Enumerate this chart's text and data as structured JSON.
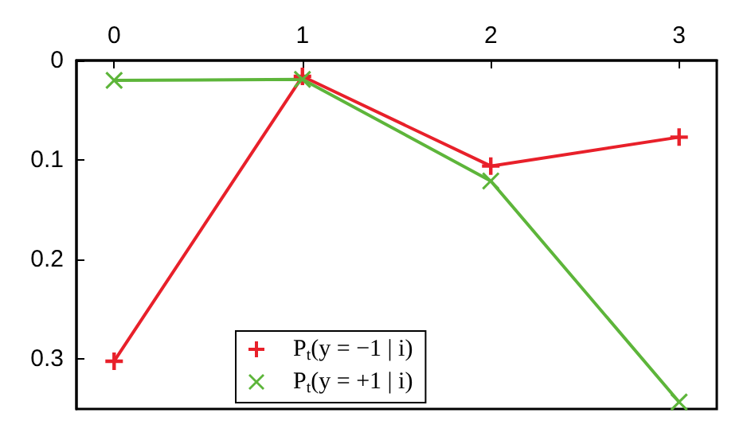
{
  "chart_data": {
    "type": "line",
    "x": [
      0,
      1,
      2,
      3
    ],
    "xlim": [
      -0.2,
      3.2
    ],
    "xticks": [
      0,
      1,
      2,
      3
    ],
    "ylim": [
      0.35,
      0
    ],
    "yticks": [
      0,
      0.1,
      0.2,
      0.3
    ],
    "legend": "bottom",
    "grid": false,
    "line_style": "solid",
    "series": [
      {
        "name": "P$_{t}$(y = −1 | i)",
        "color": "#e8202a",
        "marker": "cross",
        "values": [
          0.302,
          0.016,
          0.106,
          0.077
        ]
      },
      {
        "name": "P$_{t}$(y = +1 | i)",
        "color": "#5db53a",
        "marker": "x",
        "values": [
          0.02,
          0.019,
          0.121,
          0.343
        ]
      }
    ]
  }
}
